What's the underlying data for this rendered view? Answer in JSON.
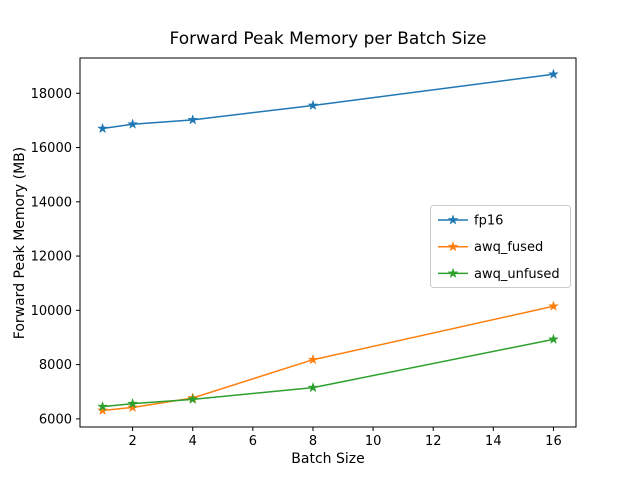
{
  "chart_data": {
    "type": "line",
    "title": "Forward Peak Memory per Batch Size",
    "xlabel": "Batch Size",
    "ylabel": "Forward Peak Memory (MB)",
    "x": [
      1,
      2,
      4,
      8,
      16
    ],
    "series": [
      {
        "name": "fp16",
        "color": "#1f77b4",
        "values": [
          16700,
          16860,
          17020,
          17550,
          18700
        ]
      },
      {
        "name": "awq_fused",
        "color": "#ff7f0e",
        "values": [
          6310,
          6420,
          6770,
          8180,
          10150
        ]
      },
      {
        "name": "awq_unfused",
        "color": "#2ca02c",
        "values": [
          6450,
          6560,
          6720,
          7150,
          8930
        ]
      }
    ],
    "xlim": [
      0.25,
      16.75
    ],
    "ylim": [
      5700,
      19300
    ],
    "xticks": [
      2,
      4,
      6,
      8,
      10,
      12,
      14,
      16
    ],
    "yticks": [
      6000,
      8000,
      10000,
      12000,
      14000,
      16000,
      18000
    ],
    "legend": {
      "position": "center right",
      "entries": [
        "fp16",
        "awq_fused",
        "awq_unfused"
      ]
    },
    "grid": false,
    "marker": "star",
    "background_color": "#ffffff",
    "spine_color": "#000000"
  }
}
